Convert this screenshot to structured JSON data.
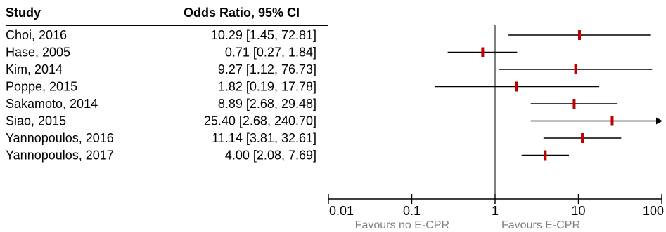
{
  "chart_data": {
    "type": "forest",
    "columns": {
      "study": "Study",
      "estimate": "Odds Ratio, 95% CI"
    },
    "xscale": "log",
    "xlim": [
      0.01,
      100
    ],
    "xticks": [
      0.01,
      0.1,
      1,
      10,
      100
    ],
    "xtick_labels": [
      "0.01",
      "0.1",
      "1",
      "10",
      "100"
    ],
    "reference_line": 1,
    "favours_left": "Favours no E-CPR",
    "favours_right": "Favours E-CPR",
    "studies": [
      {
        "name": "Choi, 2016",
        "or": 10.29,
        "lower": 1.45,
        "upper": 72.81,
        "label": "10.29 [1.45, 72.81]"
      },
      {
        "name": "Hase, 2005",
        "or": 0.71,
        "lower": 0.27,
        "upper": 1.84,
        "label": "0.71 [0.27, 1.84]"
      },
      {
        "name": "Kim, 2014",
        "or": 9.27,
        "lower": 1.12,
        "upper": 76.73,
        "label": "9.27 [1.12, 76.73]"
      },
      {
        "name": "Poppe, 2015",
        "or": 1.82,
        "lower": 0.19,
        "upper": 17.78,
        "label": "1.82 [0.19, 17.78]"
      },
      {
        "name": "Sakamoto, 2014",
        "or": 8.89,
        "lower": 2.68,
        "upper": 29.48,
        "label": "8.89 [2.68, 29.48]"
      },
      {
        "name": "Siao, 2015",
        "or": 25.4,
        "lower": 2.68,
        "upper": 240.7,
        "label": "25.40 [2.68, 240.70]"
      },
      {
        "name": "Yannopoulos, 2016",
        "or": 11.14,
        "lower": 3.81,
        "upper": 32.61,
        "label": "11.14 [3.81, 32.61]"
      },
      {
        "name": "Yannopoulos, 2017",
        "or": 4.0,
        "lower": 2.08,
        "upper": 7.69,
        "label": "4.00 [2.08, 7.69]"
      }
    ],
    "colors": {
      "marker": "#c00000",
      "ci_line": "#000000",
      "reference": "#000000",
      "note_text": "#808080"
    }
  }
}
